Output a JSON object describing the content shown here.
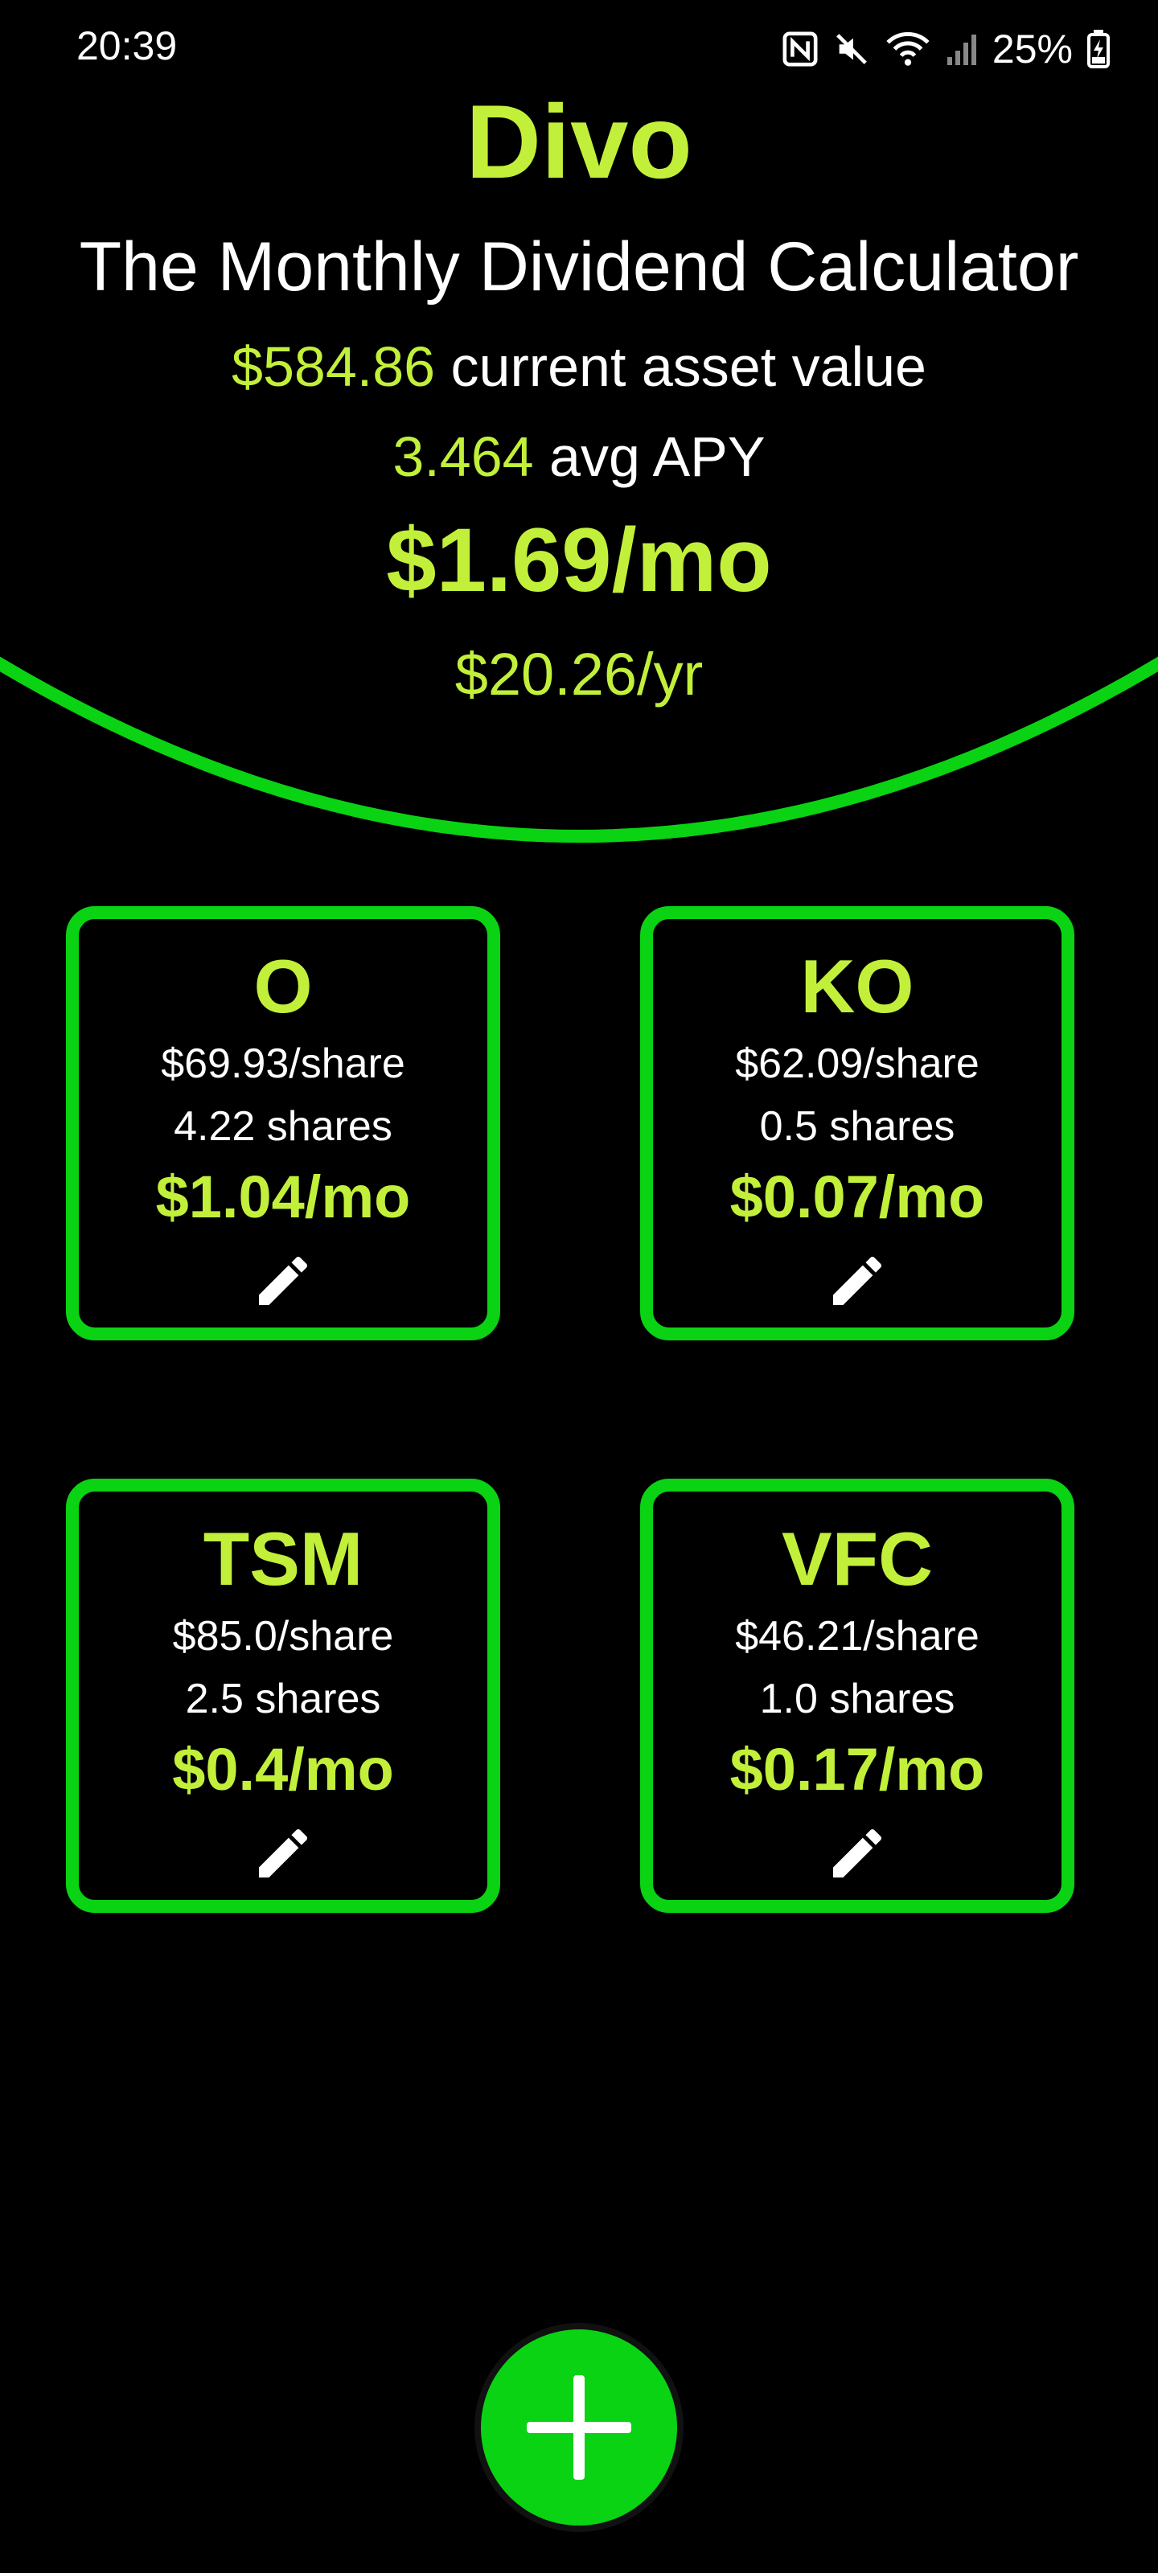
{
  "status_bar": {
    "time": "20:39",
    "battery": "25%"
  },
  "header": {
    "title": "Divo",
    "subtitle": "The Monthly Dividend Calculator",
    "asset_value": "$584.86",
    "asset_label": "current asset value",
    "apy_value": "3.464",
    "apy_label": "avg APY",
    "monthly_total": "$1.69/mo",
    "yearly_total": "$20.26/yr"
  },
  "stocks": [
    {
      "ticker": "O",
      "price": "$69.93/share",
      "shares": "4.22 shares",
      "monthly": "$1.04/mo"
    },
    {
      "ticker": "KO",
      "price": "$62.09/share",
      "shares": "0.5 shares",
      "monthly": "$0.07/mo"
    },
    {
      "ticker": "TSM",
      "price": "$85.0/share",
      "shares": "2.5 shares",
      "monthly": "$0.4/mo"
    },
    {
      "ticker": "VFC",
      "price": "$46.21/share",
      "shares": "1.0 shares",
      "monthly": "$0.17/mo"
    }
  ],
  "icons": {
    "edit": "pencil-icon",
    "add": "plus-icon"
  },
  "colors": {
    "accent": "#c2f03a",
    "border": "#0ad313",
    "background": "#000000"
  }
}
